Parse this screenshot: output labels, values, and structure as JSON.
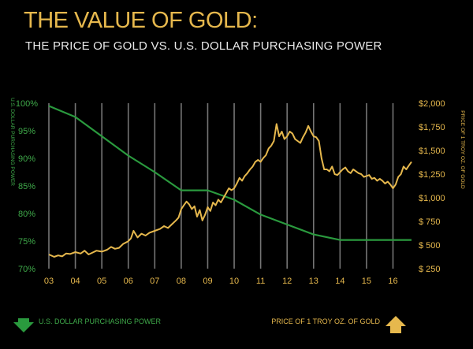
{
  "title": "THE VALUE OF GOLD:",
  "subtitle": "THE PRICE OF GOLD VS. U.S. DOLLAR PURCHASING POWER",
  "colors": {
    "background": "#000000",
    "gold": "#e6b84d",
    "green": "#2a9a3e",
    "grid": "#8a8a8a"
  },
  "legend": {
    "left": {
      "label": "U.S. DOLLAR PURCHASING POWER",
      "icon": "arrow-down-icon"
    },
    "right": {
      "label": "PRICE OF 1 TROY OZ. OF GOLD",
      "icon": "arrow-up-icon"
    }
  },
  "chart_data": {
    "type": "line",
    "x_categories": [
      "03",
      "04",
      "05",
      "06",
      "07",
      "08",
      "09",
      "10",
      "11",
      "12",
      "13",
      "14",
      "15",
      "16"
    ],
    "xlim": [
      2003,
      2016.7
    ],
    "grid": true,
    "legend_position": "bottom",
    "y_left": {
      "label": "U.S. DOLLAR PURCHASING POWER",
      "ticks": [
        "100%",
        "95%",
        "90%",
        "85%",
        "80%",
        "75%",
        "70%"
      ],
      "range": [
        70,
        100
      ]
    },
    "y_right": {
      "label": "PRICE OF 1 TROY OZ. OF GOLD",
      "ticks": [
        "$2,000",
        "$1,750",
        "$1,500",
        "$1,250",
        "$1,000",
        "$ 750",
        "$ 500",
        "$ 250"
      ],
      "range": [
        250,
        2000
      ]
    },
    "series": [
      {
        "name": "U.S. DOLLAR PURCHASING POWER",
        "axis": "left",
        "x": [
          2003.0,
          2004.0,
          2005.0,
          2006.0,
          2007.0,
          2008.0,
          2009.0,
          2010.0,
          2011.0,
          2012.0,
          2013.0,
          2014.0,
          2015.0,
          2016.0,
          2016.7
        ],
        "y": [
          99.5,
          97.5,
          94.0,
          90.5,
          87.5,
          84.2,
          84.2,
          82.5,
          79.8,
          78.0,
          76.2,
          75.2,
          75.2,
          75.2,
          75.2
        ]
      },
      {
        "name": "PRICE OF 1 TROY OZ. OF GOLD",
        "axis": "right",
        "x": [
          2003.0,
          2003.2,
          2003.35,
          2003.5,
          2003.65,
          2003.8,
          2004.0,
          2004.2,
          2004.35,
          2004.5,
          2004.65,
          2004.8,
          2005.0,
          2005.2,
          2005.35,
          2005.5,
          2005.65,
          2005.8,
          2006.0,
          2006.1,
          2006.2,
          2006.35,
          2006.5,
          2006.65,
          2006.8,
          2007.0,
          2007.2,
          2007.35,
          2007.5,
          2007.65,
          2007.8,
          2007.9,
          2008.0,
          2008.1,
          2008.2,
          2008.3,
          2008.4,
          2008.5,
          2008.6,
          2008.7,
          2008.8,
          2008.9,
          2009.0,
          2009.1,
          2009.2,
          2009.3,
          2009.4,
          2009.5,
          2009.6,
          2009.7,
          2009.8,
          2009.9,
          2010.0,
          2010.1,
          2010.2,
          2010.3,
          2010.4,
          2010.5,
          2010.6,
          2010.7,
          2010.8,
          2010.9,
          2011.0,
          2011.1,
          2011.2,
          2011.3,
          2011.4,
          2011.5,
          2011.6,
          2011.7,
          2011.8,
          2011.9,
          2012.0,
          2012.1,
          2012.2,
          2012.3,
          2012.4,
          2012.5,
          2012.6,
          2012.7,
          2012.8,
          2012.9,
          2013.0,
          2013.1,
          2013.2,
          2013.3,
          2013.4,
          2013.5,
          2013.6,
          2013.7,
          2013.8,
          2013.9,
          2014.0,
          2014.1,
          2014.2,
          2014.3,
          2014.4,
          2014.5,
          2014.6,
          2014.7,
          2014.8,
          2014.9,
          2015.0,
          2015.1,
          2015.2,
          2015.3,
          2015.4,
          2015.5,
          2015.6,
          2015.7,
          2015.8,
          2015.9,
          2016.0,
          2016.1,
          2016.2,
          2016.3,
          2016.4,
          2016.5,
          2016.6,
          2016.7
        ],
        "y": [
          400,
          375,
          390,
          380,
          410,
          405,
          425,
          410,
          440,
          400,
          420,
          440,
          430,
          450,
          480,
          460,
          470,
          510,
          540,
          570,
          650,
          580,
          620,
          600,
          630,
          650,
          670,
          700,
          680,
          720,
          760,
          790,
          880,
          920,
          960,
          930,
          880,
          910,
          800,
          870,
          760,
          820,
          900,
          860,
          950,
          920,
          980,
          950,
          1000,
          1050,
          1100,
          1080,
          1100,
          1150,
          1210,
          1180,
          1230,
          1260,
          1300,
          1330,
          1380,
          1400,
          1380,
          1420,
          1450,
          1520,
          1550,
          1600,
          1780,
          1650,
          1700,
          1620,
          1650,
          1700,
          1680,
          1620,
          1600,
          1580,
          1640,
          1690,
          1760,
          1700,
          1650,
          1640,
          1600,
          1420,
          1300,
          1300,
          1280,
          1330,
          1250,
          1240,
          1270,
          1300,
          1320,
          1280,
          1260,
          1300,
          1280,
          1260,
          1250,
          1220,
          1230,
          1240,
          1200,
          1210,
          1180,
          1200,
          1180,
          1150,
          1170,
          1140,
          1100,
          1140,
          1220,
          1250,
          1330,
          1300,
          1340,
          1380
        ]
      }
    ]
  }
}
